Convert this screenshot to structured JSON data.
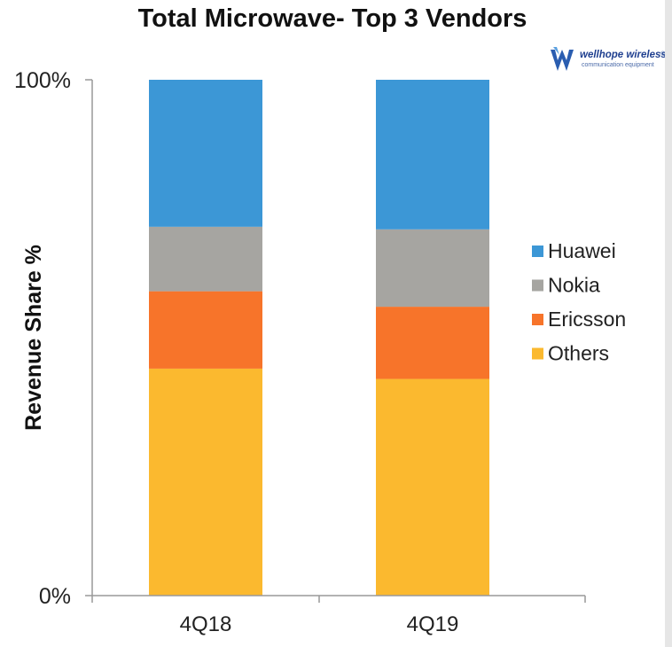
{
  "chart_data": {
    "type": "bar",
    "stacked": true,
    "title": "Total Microwave- Top 3 Vendors",
    "xlabel": "",
    "ylabel": "Revenue Share %",
    "ylim": [
      0,
      100
    ],
    "yticks": [
      "0%",
      "100%"
    ],
    "categories": [
      "4Q18",
      "4Q19"
    ],
    "series": [
      {
        "name": "Others",
        "color": "#fbb92f",
        "values": [
          44,
          42
        ]
      },
      {
        "name": "Ericsson",
        "color": "#f7742a",
        "values": [
          15,
          14
        ]
      },
      {
        "name": "Nokia",
        "color": "#a6a5a1",
        "values": [
          12.5,
          15
        ]
      },
      {
        "name": "Huawei",
        "color": "#3c97d6",
        "values": [
          28.5,
          29
        ]
      }
    ],
    "legend": {
      "position": "right",
      "order": [
        "Huawei",
        "Nokia",
        "Ericsson",
        "Others"
      ]
    }
  },
  "logo": {
    "name": "wellhope wireless",
    "registered": "®",
    "tagline": "communication equipment"
  }
}
